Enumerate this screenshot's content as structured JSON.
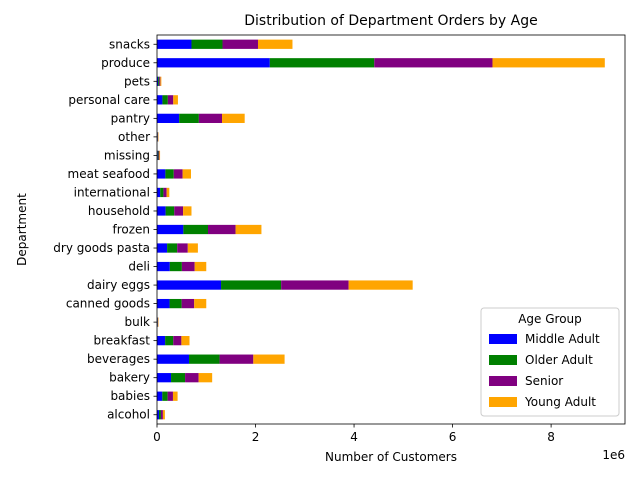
{
  "chart_data": {
    "type": "bar",
    "orientation": "horizontal",
    "stacked": true,
    "title": "Distribution of Department Orders by Age",
    "xlabel": "Number of Customers",
    "ylabel": "Department",
    "x_offset_label": "1e6",
    "xlim": [
      0,
      9500000
    ],
    "xticks": [
      0,
      2000000,
      4000000,
      6000000,
      8000000
    ],
    "xtick_labels": [
      "0",
      "2",
      "4",
      "6",
      "8"
    ],
    "grid": false,
    "legend_title": "Age Group",
    "legend_position": "lower-right",
    "categories": [
      "alcohol",
      "babies",
      "bakery",
      "beverages",
      "breakfast",
      "bulk",
      "canned goods",
      "dairy eggs",
      "deli",
      "dry goods pasta",
      "frozen",
      "household",
      "international",
      "meat seafood",
      "missing",
      "other",
      "pantry",
      "personal care",
      "pets",
      "produce",
      "snacks"
    ],
    "series": [
      {
        "name": "Middle Adult",
        "color": "#0000ff",
        "values": [
          40000,
          108000,
          285000,
          650000,
          165000,
          8000,
          255000,
          1300000,
          260000,
          205000,
          535000,
          175000,
          65000,
          170000,
          16000,
          8000,
          450000,
          110000,
          22000,
          2290000,
          700000
        ]
      },
      {
        "name": "Older Adult",
        "color": "#008000",
        "values": [
          40000,
          108000,
          285000,
          620000,
          165000,
          8000,
          245000,
          1220000,
          245000,
          205000,
          500000,
          175000,
          65000,
          170000,
          15000,
          8000,
          400000,
          110000,
          22000,
          2120000,
          630000
        ]
      },
      {
        "name": "Senior",
        "color": "#800080",
        "values": [
          40000,
          108000,
          275000,
          685000,
          165000,
          8000,
          255000,
          1370000,
          260000,
          215000,
          560000,
          180000,
          65000,
          180000,
          17000,
          8000,
          470000,
          110000,
          24000,
          2400000,
          720000
        ]
      },
      {
        "name": "Young Adult",
        "color": "#ffa500",
        "values": [
          40000,
          94000,
          275000,
          635000,
          165000,
          8000,
          245000,
          1300000,
          235000,
          205000,
          525000,
          170000,
          55000,
          170000,
          14000,
          8000,
          460000,
          95000,
          20000,
          2280000,
          700000
        ]
      }
    ]
  }
}
